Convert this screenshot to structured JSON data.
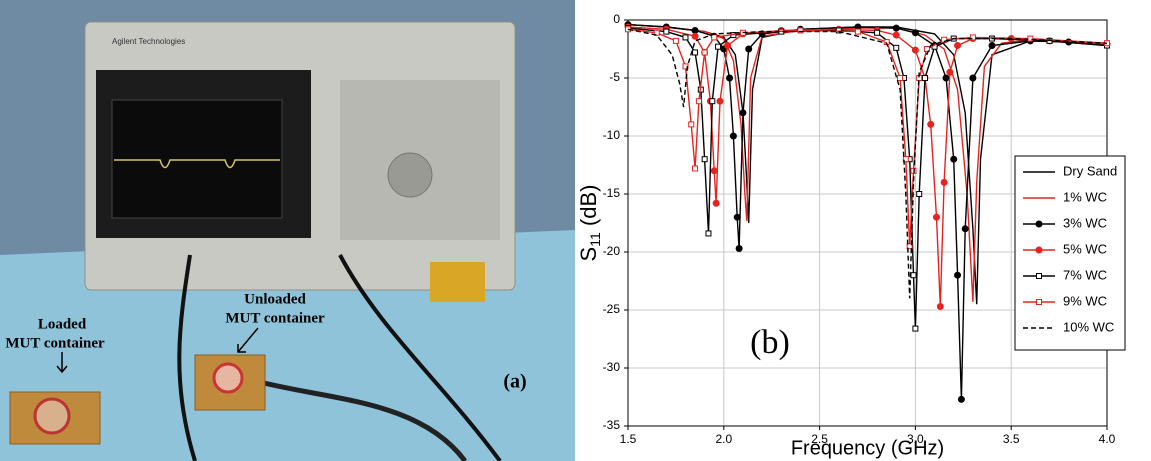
{
  "photo": {
    "loaded_label": [
      "Loaded",
      "MUT container"
    ],
    "unloaded_label": [
      "Unloaded",
      "MUT container"
    ],
    "panel_label": "(a)",
    "brand": "Agilent Technologies"
  },
  "chart_data": {
    "type": "line",
    "x_label": "Frequency (GHz)",
    "y_label": {
      "symbol": "S",
      "subscript": "11",
      "unit": " (dB)"
    },
    "annotation": "(b)",
    "xlim": [
      1.5,
      4.0
    ],
    "xticks": [
      1.5,
      {
        "value": 2,
        "label": "2.0"
      },
      2.5,
      {
        "value": 3,
        "label": "3.0"
      },
      3.5,
      {
        "value": 4,
        "label": "4.0"
      }
    ],
    "ylim": [
      -35,
      0
    ],
    "yticks": [
      0,
      -5,
      -10,
      -15,
      -20,
      -25,
      -30,
      -35
    ],
    "grid": true,
    "legend": {
      "position": "right"
    },
    "series": [
      {
        "name": "Dry Sand",
        "color": "#000000",
        "marker": null,
        "line_style": "solid",
        "x": [
          1.5,
          1.7,
          1.9,
          2.0,
          2.06,
          2.1,
          2.12,
          2.13,
          2.15,
          2.2,
          2.4,
          2.7,
          2.9,
          3.1,
          3.2,
          3.26,
          3.3,
          3.32,
          3.34,
          3.4,
          3.6,
          4.0
        ],
        "values": [
          -0.4,
          -0.6,
          -1.0,
          -1.5,
          -3,
          -8,
          -14,
          -17.5,
          -6,
          -1.5,
          -0.8,
          -0.6,
          -0.6,
          -1.2,
          -3,
          -8,
          -18,
          -24.5,
          -12,
          -3,
          -1.8,
          -2.0
        ]
      },
      {
        "name": "1% WC",
        "color": "#e8231f",
        "marker": null,
        "line_style": "solid",
        "x": [
          1.5,
          1.7,
          1.9,
          2.0,
          2.05,
          2.09,
          2.11,
          2.12,
          2.14,
          2.2,
          2.4,
          2.7,
          2.9,
          3.05,
          3.15,
          3.22,
          3.27,
          3.3,
          3.32,
          3.36,
          3.45,
          3.6,
          4.0
        ],
        "values": [
          -0.4,
          -0.6,
          -1.0,
          -1.6,
          -3.5,
          -9,
          -15,
          -17.3,
          -5,
          -1.4,
          -0.9,
          -0.7,
          -0.7,
          -1.3,
          -2.5,
          -6,
          -15,
          -24.3,
          -14,
          -4,
          -2,
          -1.7,
          -2.2
        ]
      },
      {
        "name": "3% WC",
        "color": "#000000",
        "marker": "circle-filled",
        "line_style": "solid",
        "x": [
          1.5,
          1.7,
          1.85,
          1.95,
          2.0,
          2.03,
          2.05,
          2.07,
          2.08,
          2.1,
          2.13,
          2.2,
          2.4,
          2.7,
          2.9,
          3.0,
          3.1,
          3.16,
          3.2,
          3.22,
          3.24,
          3.26,
          3.3,
          3.4,
          3.6,
          3.8,
          4.0
        ],
        "values": [
          -0.4,
          -0.6,
          -0.9,
          -1.4,
          -2.5,
          -5,
          -10,
          -17,
          -19.7,
          -8,
          -2.5,
          -1.2,
          -0.8,
          -0.6,
          -0.7,
          -1.1,
          -2.2,
          -5,
          -12,
          -22,
          -32.7,
          -18,
          -5,
          -2.2,
          -1.8,
          -1.9,
          -2.1
        ]
      },
      {
        "name": "5% WC",
        "color": "#e8231f",
        "marker": "circle-filled",
        "line_style": "solid",
        "x": [
          1.5,
          1.7,
          1.85,
          1.9,
          1.93,
          1.95,
          1.96,
          1.98,
          2.02,
          2.1,
          2.3,
          2.6,
          2.8,
          2.9,
          3.0,
          3.05,
          3.08,
          3.11,
          3.13,
          3.15,
          3.18,
          3.22,
          3.3,
          3.5,
          3.7,
          4.0
        ],
        "values": [
          -0.6,
          -0.8,
          -1.4,
          -2.8,
          -7,
          -13,
          -15.8,
          -7,
          -2.2,
          -1.2,
          -0.9,
          -0.8,
          -0.9,
          -1.3,
          -2.6,
          -5,
          -9,
          -17,
          -24.7,
          -14,
          -4.5,
          -2.2,
          -1.6,
          -1.6,
          -1.8,
          -2.1
        ]
      },
      {
        "name": "7% WC",
        "color": "#000000",
        "marker": "square-hollow",
        "line_style": "solid",
        "x": [
          1.5,
          1.7,
          1.8,
          1.85,
          1.88,
          1.9,
          1.92,
          1.94,
          1.97,
          2.05,
          2.3,
          2.6,
          2.8,
          2.9,
          2.94,
          2.97,
          2.99,
          3.0,
          3.02,
          3.05,
          3.1,
          3.2,
          3.4,
          3.7,
          4.0
        ],
        "values": [
          -0.7,
          -1.0,
          -1.5,
          -2.8,
          -6,
          -12,
          -18.4,
          -7,
          -2.3,
          -1.3,
          -1.0,
          -0.9,
          -1.1,
          -2.4,
          -5,
          -12,
          -22,
          -26.6,
          -15,
          -5,
          -2.3,
          -1.6,
          -1.6,
          -1.8,
          -2.2
        ]
      },
      {
        "name": "9% WC",
        "color": "#e8231f",
        "marker": "square-hollow",
        "line_style": "solid",
        "x": [
          1.5,
          1.65,
          1.75,
          1.8,
          1.83,
          1.85,
          1.87,
          1.9,
          1.95,
          2.1,
          2.4,
          2.7,
          2.85,
          2.92,
          2.95,
          2.97,
          2.99,
          3.02,
          3.06,
          3.15,
          3.3,
          3.6,
          4.0
        ],
        "values": [
          -0.8,
          -1.1,
          -1.8,
          -4,
          -9,
          -12.8,
          -7,
          -2.8,
          -1.5,
          -1.1,
          -0.9,
          -1.0,
          -1.9,
          -5,
          -12,
          -19.5,
          -13,
          -5,
          -2.5,
          -1.7,
          -1.5,
          -1.6,
          -2.0
        ]
      },
      {
        "name": "10% WC",
        "color": "#000000",
        "marker": null,
        "line_style": "dashed",
        "x": [
          1.5,
          1.65,
          1.73,
          1.77,
          1.79,
          1.81,
          1.85,
          1.95,
          2.2,
          2.6,
          2.85,
          2.92,
          2.95,
          2.97,
          2.99,
          3.02,
          3.08,
          3.2,
          3.5,
          4.0
        ],
        "values": [
          -0.8,
          -1.3,
          -3,
          -5.5,
          -7.5,
          -4,
          -1.8,
          -1.2,
          -1.0,
          -1.0,
          -2.0,
          -6,
          -15,
          -24,
          -14,
          -4.5,
          -2.2,
          -1.6,
          -1.6,
          -2.0
        ]
      }
    ]
  }
}
